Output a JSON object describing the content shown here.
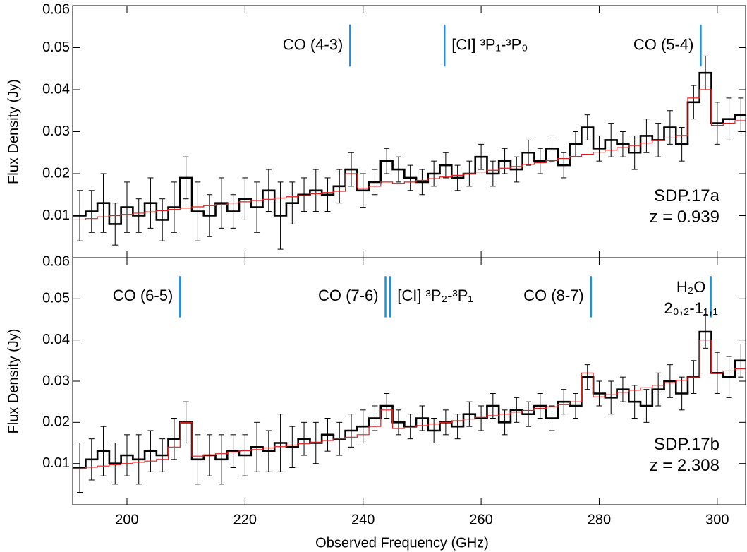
{
  "chart_data": [
    {
      "type": "step",
      "ylabel": "Flux Density (Jy)",
      "xlim": [
        190.8,
        304.8
      ],
      "xticks": [
        200,
        220,
        240,
        260,
        280,
        300
      ],
      "xtick_labels": false,
      "ylim": [
        0,
        0.06
      ],
      "yticks": [
        0.01,
        0.02,
        0.03,
        0.04,
        0.05,
        0.06
      ],
      "color": "#000000",
      "model_color": "#e02020",
      "line_color": "#1e8ee0",
      "x": [
        192,
        194,
        196,
        198,
        200,
        202,
        204,
        206,
        208,
        210,
        212,
        214,
        216,
        218,
        220,
        222,
        224,
        226,
        228,
        230,
        232,
        234,
        236,
        238,
        240,
        242,
        244,
        246,
        248,
        250,
        252,
        254,
        256,
        258,
        260,
        262,
        264,
        266,
        268,
        270,
        272,
        274,
        276,
        278,
        280,
        282,
        284,
        286,
        288,
        290,
        292,
        294,
        296,
        298,
        300,
        302,
        304
      ],
      "values": [
        0.01,
        0.011,
        0.013,
        0.008,
        0.012,
        0.01,
        0.013,
        0.009,
        0.012,
        0.019,
        0.011,
        0.01,
        0.013,
        0.011,
        0.014,
        0.012,
        0.016,
        0.01,
        0.013,
        0.015,
        0.016,
        0.015,
        0.017,
        0.021,
        0.016,
        0.018,
        0.023,
        0.021,
        0.019,
        0.018,
        0.02,
        0.022,
        0.019,
        0.02,
        0.024,
        0.02,
        0.023,
        0.021,
        0.025,
        0.023,
        0.026,
        0.022,
        0.027,
        0.031,
        0.026,
        0.028,
        0.027,
        0.025,
        0.029,
        0.028,
        0.031,
        0.027,
        0.037,
        0.044,
        0.032,
        0.033,
        0.034
      ],
      "errors": [
        0.006,
        0.005,
        0.007,
        0.005,
        0.006,
        0.004,
        0.006,
        0.005,
        0.006,
        0.005,
        0.007,
        0.005,
        0.006,
        0.004,
        0.005,
        0.006,
        0.005,
        0.008,
        0.005,
        0.004,
        0.005,
        0.004,
        0.004,
        0.004,
        0.004,
        0.003,
        0.003,
        0.003,
        0.003,
        0.003,
        0.003,
        0.003,
        0.003,
        0.003,
        0.003,
        0.003,
        0.003,
        0.003,
        0.003,
        0.003,
        0.003,
        0.003,
        0.003,
        0.003,
        0.003,
        0.004,
        0.003,
        0.004,
        0.004,
        0.004,
        0.004,
        0.004,
        0.004,
        0.004,
        0.005,
        0.005,
        0.004
      ],
      "model": [
        0.009,
        0.0093,
        0.0097,
        0.01,
        0.0103,
        0.0106,
        0.0109,
        0.0112,
        0.0115,
        0.0118,
        0.0121,
        0.0124,
        0.0127,
        0.013,
        0.0133,
        0.0136,
        0.0139,
        0.0142,
        0.0145,
        0.0148,
        0.0152,
        0.0155,
        0.0158,
        0.02,
        0.0165,
        0.017,
        0.018,
        0.0177,
        0.018,
        0.0184,
        0.0188,
        0.0192,
        0.0196,
        0.02,
        0.0204,
        0.0208,
        0.0213,
        0.0217,
        0.0222,
        0.0226,
        0.0231,
        0.0236,
        0.0241,
        0.0246,
        0.0251,
        0.0256,
        0.0262,
        0.0267,
        0.0273,
        0.0279,
        0.0285,
        0.0291,
        0.038,
        0.04,
        0.0315,
        0.032,
        0.0326
      ],
      "annotations": [
        {
          "label": [
            "CO (4-3)"
          ],
          "x": 237.8
        },
        {
          "label": [
            "[CI] ³P₁-³P₀"
          ],
          "x": 253.8
        },
        {
          "label": [
            "CO (5-4)"
          ],
          "x": 297.2
        }
      ],
      "text": [
        "SDP.17a",
        "z = 0.939"
      ]
    },
    {
      "type": "step",
      "ylabel": "Flux Density (Jy)",
      "xlabel": "Observed Frequency (GHz)",
      "xlim": [
        190.8,
        304.8
      ],
      "xticks": [
        200,
        220,
        240,
        260,
        280,
        300
      ],
      "xtick_labels": true,
      "ylim": [
        0,
        0.06
      ],
      "yticks": [
        0.01,
        0.02,
        0.03,
        0.04,
        0.05,
        0.06
      ],
      "color": "#000000",
      "model_color": "#e02020",
      "line_color": "#1e8ee0",
      "x": [
        192,
        194,
        196,
        198,
        200,
        202,
        204,
        206,
        208,
        210,
        212,
        214,
        216,
        218,
        220,
        222,
        224,
        226,
        228,
        230,
        232,
        234,
        236,
        238,
        240,
        242,
        244,
        246,
        248,
        250,
        252,
        254,
        256,
        258,
        260,
        262,
        264,
        266,
        268,
        270,
        272,
        274,
        276,
        278,
        280,
        282,
        284,
        286,
        288,
        290,
        292,
        294,
        296,
        298,
        300,
        302,
        304
      ],
      "values": [
        0.009,
        0.011,
        0.013,
        0.01,
        0.012,
        0.011,
        0.013,
        0.012,
        0.016,
        0.02,
        0.011,
        0.012,
        0.011,
        0.013,
        0.012,
        0.014,
        0.013,
        0.015,
        0.014,
        0.016,
        0.015,
        0.017,
        0.016,
        0.018,
        0.019,
        0.021,
        0.024,
        0.02,
        0.019,
        0.021,
        0.018,
        0.02,
        0.019,
        0.022,
        0.021,
        0.024,
        0.02,
        0.023,
        0.022,
        0.024,
        0.021,
        0.025,
        0.024,
        0.031,
        0.027,
        0.026,
        0.028,
        0.025,
        0.024,
        0.028,
        0.03,
        0.027,
        0.031,
        0.042,
        0.032,
        0.031,
        0.035
      ],
      "errors": [
        0.006,
        0.005,
        0.006,
        0.005,
        0.005,
        0.006,
        0.005,
        0.004,
        0.005,
        0.005,
        0.006,
        0.005,
        0.006,
        0.004,
        0.005,
        0.006,
        0.005,
        0.007,
        0.005,
        0.004,
        0.005,
        0.004,
        0.004,
        0.004,
        0.004,
        0.003,
        0.003,
        0.003,
        0.003,
        0.003,
        0.003,
        0.003,
        0.003,
        0.003,
        0.003,
        0.003,
        0.003,
        0.003,
        0.003,
        0.003,
        0.003,
        0.003,
        0.003,
        0.003,
        0.003,
        0.004,
        0.003,
        0.004,
        0.004,
        0.004,
        0.004,
        0.004,
        0.004,
        0.004,
        0.005,
        0.005,
        0.004
      ],
      "model": [
        0.0088,
        0.0091,
        0.0094,
        0.0097,
        0.01,
        0.0103,
        0.0106,
        0.011,
        0.014,
        0.02,
        0.0118,
        0.0121,
        0.0124,
        0.0128,
        0.0131,
        0.0134,
        0.0138,
        0.0141,
        0.0145,
        0.0148,
        0.0152,
        0.0156,
        0.016,
        0.0164,
        0.017,
        0.019,
        0.023,
        0.0185,
        0.0188,
        0.0192,
        0.0196,
        0.02,
        0.0204,
        0.0208,
        0.0212,
        0.0216,
        0.022,
        0.0225,
        0.0229,
        0.0234,
        0.0238,
        0.0243,
        0.025,
        0.032,
        0.0262,
        0.0267,
        0.0273,
        0.0278,
        0.0284,
        0.029,
        0.0296,
        0.0302,
        0.031,
        0.04,
        0.032,
        0.0325,
        0.033
      ],
      "annotations": [
        {
          "label": [
            "CO (6-5)"
          ],
          "x": 209.0
        },
        {
          "label": [
            "CO (7-6)"
          ],
          "x": 243.8
        },
        {
          "label": [
            "[CI] ³P₂-³P₁"
          ],
          "x": 244.6
        },
        {
          "label": [
            "CO (8-7)"
          ],
          "x": 278.6
        },
        {
          "label": [
            "H₂O",
            "2₀,₂-1₁,₁"
          ],
          "x": 298.9
        }
      ],
      "text": [
        "SDP.17b",
        "z = 2.308"
      ]
    }
  ]
}
